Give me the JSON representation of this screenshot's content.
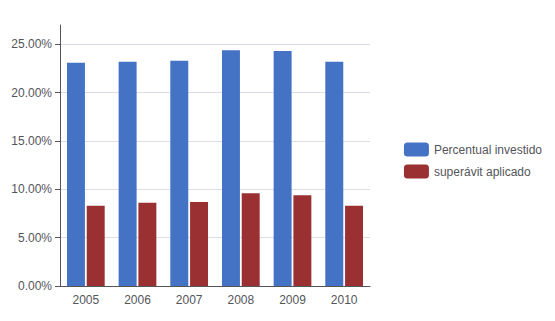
{
  "chart_data": {
    "type": "bar",
    "categories": [
      "2005",
      "2006",
      "2007",
      "2008",
      "2009",
      "2010"
    ],
    "series": [
      {
        "name": "Percentual investido",
        "color": "#4472C4",
        "values": [
          0.231,
          0.232,
          0.233,
          0.244,
          0.243,
          0.232
        ]
      },
      {
        "name": "superávit aplicado",
        "color": "#9B3033",
        "values": [
          0.083,
          0.086,
          0.087,
          0.096,
          0.094,
          0.083
        ]
      }
    ],
    "ylim": [
      0.0,
      0.27
    ],
    "yticks": [
      {
        "value": 0.0,
        "label": "0.00%"
      },
      {
        "value": 0.05,
        "label": "5.00%"
      },
      {
        "value": 0.1,
        "label": "10.00%"
      },
      {
        "value": 0.15,
        "label": "15.00%"
      },
      {
        "value": 0.2,
        "label": "20.00%"
      },
      {
        "value": 0.25,
        "label": "25.00%"
      }
    ],
    "grid": true,
    "legend": "right"
  }
}
